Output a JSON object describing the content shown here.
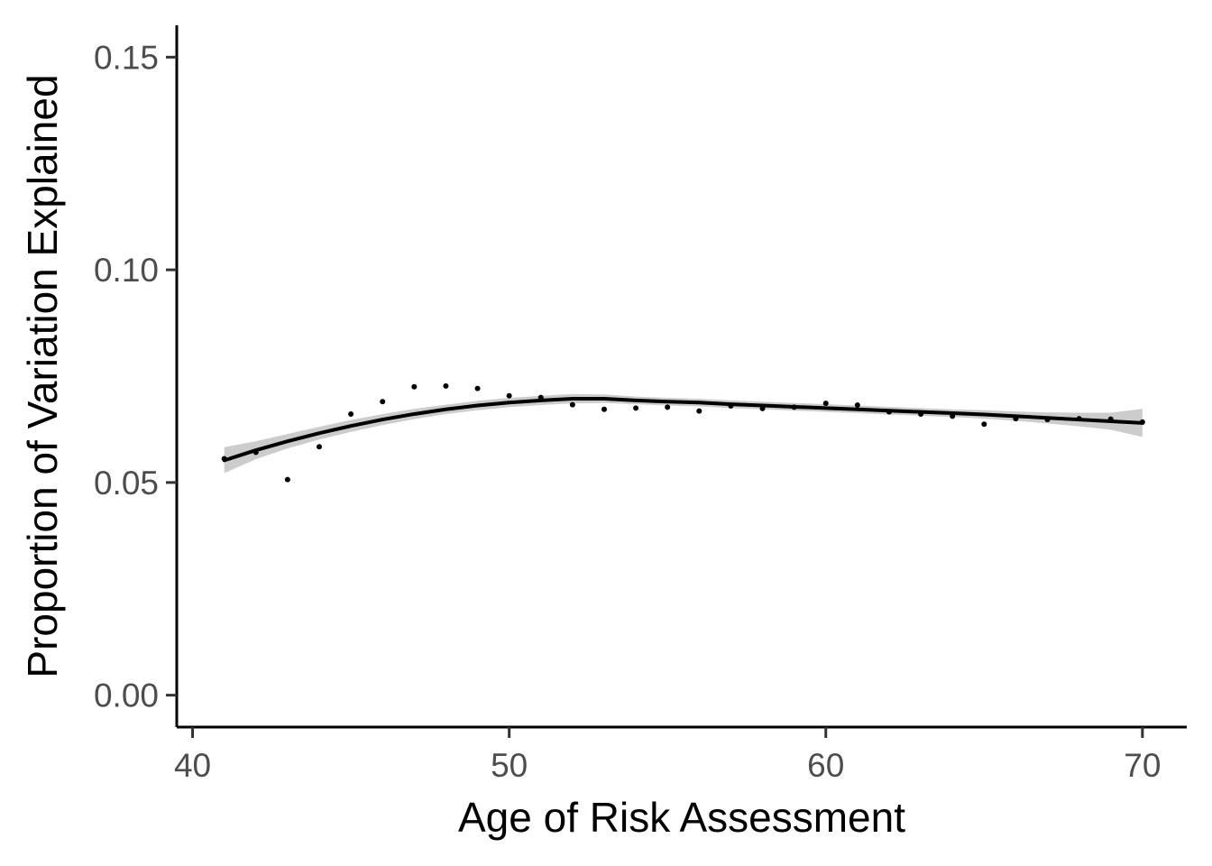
{
  "chart_data": {
    "type": "scatter",
    "title": "",
    "xlabel": "Age of Risk Assessment",
    "ylabel": "Proportion of Variation Explained",
    "xlim": [
      39.5,
      71.4
    ],
    "ylim": [
      -0.0075,
      0.1575
    ],
    "x_ticks": [
      40,
      50,
      60,
      70
    ],
    "y_ticks": [
      0.0,
      0.05,
      0.1,
      0.15
    ],
    "x_tick_labels": [
      "40",
      "50",
      "60",
      "70"
    ],
    "y_tick_labels": [
      "0.00",
      "0.05",
      "0.10",
      "0.15"
    ],
    "grid": false,
    "legend": "none",
    "series": [
      {
        "kind": "points",
        "color": "#000000",
        "points": [
          [
            41,
            0.0556
          ],
          [
            42,
            0.0571
          ],
          [
            43,
            0.0507
          ],
          [
            44,
            0.0584
          ],
          [
            45,
            0.0661
          ],
          [
            46,
            0.069
          ],
          [
            47,
            0.0725
          ],
          [
            48,
            0.0727
          ],
          [
            49,
            0.0721
          ],
          [
            50,
            0.0704
          ],
          [
            51,
            0.07
          ],
          [
            52,
            0.0683
          ],
          [
            53,
            0.0672
          ],
          [
            54,
            0.0675
          ],
          [
            55,
            0.0677
          ],
          [
            56,
            0.0668
          ],
          [
            57,
            0.068
          ],
          [
            58,
            0.0674
          ],
          [
            59,
            0.0677
          ],
          [
            60,
            0.0686
          ],
          [
            61,
            0.0682
          ],
          [
            62,
            0.0666
          ],
          [
            63,
            0.0661
          ],
          [
            64,
            0.0656
          ],
          [
            65,
            0.0637
          ],
          [
            66,
            0.065
          ],
          [
            67,
            0.0648
          ],
          [
            68,
            0.065
          ],
          [
            69,
            0.0649
          ],
          [
            70,
            0.0642
          ]
        ]
      },
      {
        "kind": "smooth",
        "color": "#000000",
        "band_color": "#cccccc",
        "points": [
          [
            41,
            0.0552,
            0.0522,
            0.0583
          ],
          [
            42,
            0.0576,
            0.0555,
            0.0597
          ],
          [
            43,
            0.0597,
            0.058,
            0.0614
          ],
          [
            44,
            0.0616,
            0.0601,
            0.0631
          ],
          [
            45,
            0.0633,
            0.0619,
            0.0647
          ],
          [
            46,
            0.0648,
            0.0635,
            0.0661
          ],
          [
            47,
            0.0661,
            0.0649,
            0.0673
          ],
          [
            48,
            0.0672,
            0.0661,
            0.0683
          ],
          [
            49,
            0.0681,
            0.067,
            0.0692
          ],
          [
            50,
            0.0688,
            0.0677,
            0.0699
          ],
          [
            51,
            0.0693,
            0.0682,
            0.0704
          ],
          [
            52,
            0.0697,
            0.0686,
            0.0708
          ],
          [
            53,
            0.0697,
            0.0687,
            0.0707
          ],
          [
            54,
            0.0693,
            0.0684,
            0.0702
          ],
          [
            55,
            0.069,
            0.0681,
            0.0699
          ],
          [
            56,
            0.0688,
            0.0679,
            0.0697
          ],
          [
            57,
            0.0684,
            0.0675,
            0.0693
          ],
          [
            58,
            0.0681,
            0.0672,
            0.069
          ],
          [
            59,
            0.0678,
            0.0669,
            0.0687
          ],
          [
            60,
            0.0675,
            0.0666,
            0.0684
          ],
          [
            61,
            0.0672,
            0.0663,
            0.0681
          ],
          [
            62,
            0.0669,
            0.066,
            0.0678
          ],
          [
            63,
            0.0666,
            0.0657,
            0.0675
          ],
          [
            64,
            0.0663,
            0.0654,
            0.0672
          ],
          [
            65,
            0.066,
            0.065,
            0.067
          ],
          [
            66,
            0.0656,
            0.0645,
            0.0667
          ],
          [
            67,
            0.0652,
            0.0639,
            0.0665
          ],
          [
            68,
            0.0648,
            0.0632,
            0.0664
          ],
          [
            69,
            0.0644,
            0.0624,
            0.0664
          ],
          [
            70,
            0.064,
            0.0607,
            0.0673
          ]
        ]
      }
    ]
  }
}
